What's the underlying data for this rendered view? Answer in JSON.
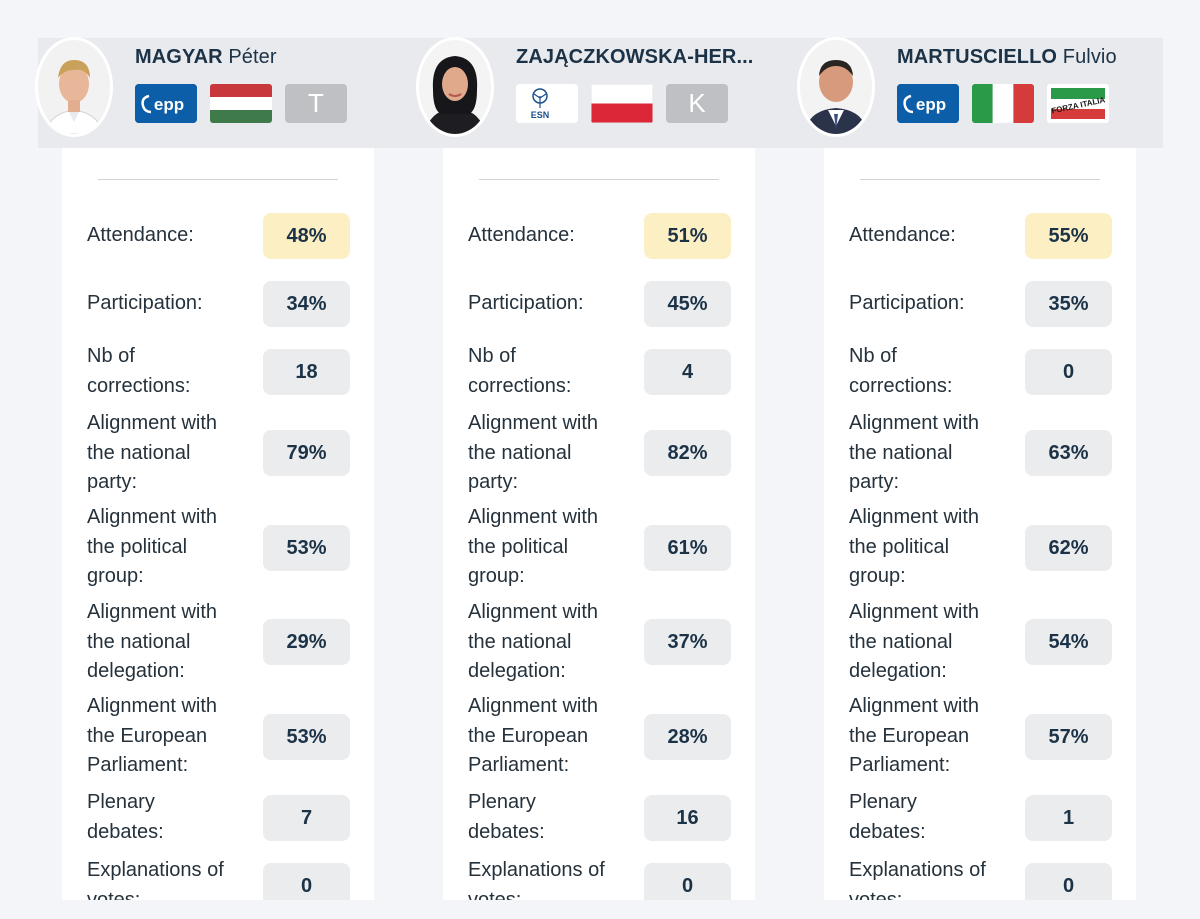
{
  "meps": [
    {
      "last_name": "MAGYAR",
      "first_name": "Péter",
      "group_badge": "epp",
      "party_badge": "T",
      "flag": "hungary",
      "stats": {
        "attendance": "48%",
        "participation": "34%",
        "corrections": "18",
        "align_national_party": "79%",
        "align_political_group": "53%",
        "align_national_delegation": "29%",
        "align_european_parliament": "53%",
        "plenary_debates": "7",
        "explanations_of_votes": "0"
      }
    },
    {
      "last_name": "ZAJĄCZKOWSKA-HER...",
      "first_name": "",
      "group_badge": "ESN",
      "party_badge": "K",
      "flag": "poland",
      "stats": {
        "attendance": "51%",
        "participation": "45%",
        "corrections": "4",
        "align_national_party": "82%",
        "align_political_group": "61%",
        "align_national_delegation": "37%",
        "align_european_parliament": "28%",
        "plenary_debates": "16",
        "explanations_of_votes": "0"
      }
    },
    {
      "last_name": "MARTUSCIELLO",
      "first_name": "Fulvio",
      "group_badge": "epp",
      "party_badge": "FORZA ITALIA",
      "flag": "italy",
      "stats": {
        "attendance": "55%",
        "participation": "35%",
        "corrections": "0",
        "align_national_party": "63%",
        "align_political_group": "62%",
        "align_national_delegation": "54%",
        "align_european_parliament": "57%",
        "plenary_debates": "1",
        "explanations_of_votes": "0"
      }
    }
  ],
  "labels": {
    "attendance": "Attendance:",
    "participation": "Participation:",
    "corrections_1": "Nb of",
    "corrections_2": "corrections:",
    "national_party_1": "Alignment with",
    "national_party_2": "the national",
    "national_party_3": "party:",
    "political_group_1": "Alignment with",
    "political_group_2": "the political",
    "political_group_3": "group:",
    "national_delegation_1": "Alignment with",
    "national_delegation_2": "the national",
    "national_delegation_3": "delegation:",
    "european_parliament_1": "Alignment with",
    "european_parliament_2": "the European",
    "european_parliament_3": "Parliament:",
    "plenary_1": "Plenary",
    "plenary_2": "debates:",
    "explanations_1": "Explanations of",
    "explanations_2": "votes:"
  },
  "colors": {
    "highlight": "#fdefc4",
    "value_bg": "#ebecee",
    "epp_blue": "#0d5ea9",
    "header_band": "#e9eaee"
  }
}
